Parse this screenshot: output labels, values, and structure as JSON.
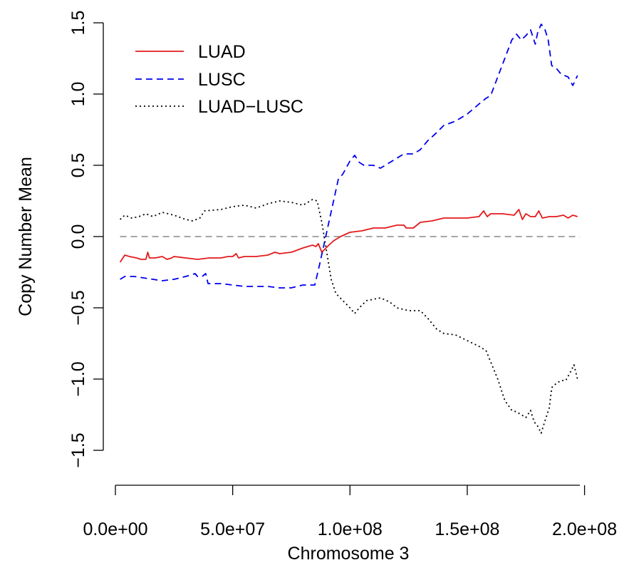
{
  "chart_data": {
    "type": "line",
    "title": "",
    "xlabel": "Chromosome 3",
    "ylabel": "Copy Number Mean",
    "xlim": [
      0,
      198000000
    ],
    "ylim": [
      -1.5,
      1.5
    ],
    "x_ticks": [
      0,
      50000000,
      100000000,
      150000000,
      200000000
    ],
    "x_tick_labels": [
      "0.0e+00",
      "5.0e+07",
      "1.0e+08",
      "1.5e+08",
      "2.0e+08"
    ],
    "y_ticks": [
      -1.5,
      -1.0,
      -0.5,
      0.0,
      0.5,
      1.0,
      1.5
    ],
    "y_tick_labels": [
      "−1.5",
      "−1.0",
      "−0.5",
      "0.0",
      "0.5",
      "1.0",
      "1.5"
    ],
    "reference_line": {
      "y": 0,
      "color": "#888888",
      "style": "dashed"
    },
    "legend_position": "top-left",
    "grid": false,
    "series": [
      {
        "name": "LUAD",
        "color": "#e41a1c",
        "style": "solid",
        "points": [
          [
            2000000,
            -0.18
          ],
          [
            4000000,
            -0.13
          ],
          [
            6000000,
            -0.14
          ],
          [
            9000000,
            -0.15
          ],
          [
            11000000,
            -0.16
          ],
          [
            13000000,
            -0.16
          ],
          [
            13800000,
            -0.11
          ],
          [
            14500000,
            -0.15
          ],
          [
            17000000,
            -0.15
          ],
          [
            20000000,
            -0.14
          ],
          [
            22000000,
            -0.16
          ],
          [
            24000000,
            -0.15
          ],
          [
            25000000,
            -0.14
          ],
          [
            30000000,
            -0.15
          ],
          [
            35000000,
            -0.16
          ],
          [
            40000000,
            -0.15
          ],
          [
            45000000,
            -0.15
          ],
          [
            48000000,
            -0.14
          ],
          [
            50000000,
            -0.14
          ],
          [
            51500000,
            -0.12
          ],
          [
            52500000,
            -0.15
          ],
          [
            55000000,
            -0.14
          ],
          [
            60000000,
            -0.14
          ],
          [
            65000000,
            -0.13
          ],
          [
            68000000,
            -0.11
          ],
          [
            70000000,
            -0.12
          ],
          [
            75000000,
            -0.11
          ],
          [
            80000000,
            -0.08
          ],
          [
            84000000,
            -0.06
          ],
          [
            85500000,
            -0.07
          ],
          [
            86500000,
            -0.05
          ],
          [
            88000000,
            -0.11
          ],
          [
            91000000,
            -0.06
          ],
          [
            93000000,
            -0.03
          ],
          [
            96000000,
            0.0
          ],
          [
            100000000,
            0.03
          ],
          [
            105000000,
            0.04
          ],
          [
            110000000,
            0.06
          ],
          [
            115000000,
            0.06
          ],
          [
            120000000,
            0.08
          ],
          [
            123000000,
            0.08
          ],
          [
            124000000,
            0.06
          ],
          [
            127000000,
            0.06
          ],
          [
            130000000,
            0.1
          ],
          [
            135000000,
            0.11
          ],
          [
            140000000,
            0.13
          ],
          [
            145000000,
            0.13
          ],
          [
            150000000,
            0.13
          ],
          [
            155000000,
            0.14
          ],
          [
            157000000,
            0.18
          ],
          [
            158500000,
            0.14
          ],
          [
            160000000,
            0.16
          ],
          [
            165000000,
            0.16
          ],
          [
            170000000,
            0.15
          ],
          [
            172000000,
            0.19
          ],
          [
            173500000,
            0.12
          ],
          [
            175000000,
            0.16
          ],
          [
            177000000,
            0.14
          ],
          [
            179000000,
            0.14
          ],
          [
            180500000,
            0.18
          ],
          [
            182000000,
            0.13
          ],
          [
            185000000,
            0.14
          ],
          [
            188000000,
            0.14
          ],
          [
            191000000,
            0.15
          ],
          [
            193000000,
            0.13
          ],
          [
            195000000,
            0.15
          ],
          [
            197000000,
            0.14
          ]
        ]
      },
      {
        "name": "LUSC",
        "color": "#0000ee",
        "style": "dashed",
        "points": [
          [
            2000000,
            -0.3
          ],
          [
            4000000,
            -0.28
          ],
          [
            8000000,
            -0.28
          ],
          [
            12000000,
            -0.29
          ],
          [
            16000000,
            -0.3
          ],
          [
            20000000,
            -0.31
          ],
          [
            25000000,
            -0.3
          ],
          [
            30000000,
            -0.28
          ],
          [
            34000000,
            -0.26
          ],
          [
            35000000,
            -0.28
          ],
          [
            37000000,
            -0.28
          ],
          [
            38500000,
            -0.26
          ],
          [
            39500000,
            -0.33
          ],
          [
            45000000,
            -0.33
          ],
          [
            50000000,
            -0.34
          ],
          [
            55000000,
            -0.35
          ],
          [
            60000000,
            -0.35
          ],
          [
            65000000,
            -0.35
          ],
          [
            70000000,
            -0.36
          ],
          [
            75000000,
            -0.36
          ],
          [
            80000000,
            -0.34
          ],
          [
            85000000,
            -0.34
          ],
          [
            87000000,
            -0.2
          ],
          [
            89000000,
            -0.05
          ],
          [
            91000000,
            0.1
          ],
          [
            93000000,
            0.25
          ],
          [
            95000000,
            0.4
          ],
          [
            97000000,
            0.44
          ],
          [
            100000000,
            0.53
          ],
          [
            102000000,
            0.57
          ],
          [
            104000000,
            0.52
          ],
          [
            106000000,
            0.5
          ],
          [
            110000000,
            0.5
          ],
          [
            113000000,
            0.48
          ],
          [
            117000000,
            0.52
          ],
          [
            120000000,
            0.55
          ],
          [
            123000000,
            0.58
          ],
          [
            127000000,
            0.58
          ],
          [
            130000000,
            0.61
          ],
          [
            133000000,
            0.67
          ],
          [
            137000000,
            0.73
          ],
          [
            140000000,
            0.78
          ],
          [
            145000000,
            0.81
          ],
          [
            150000000,
            0.86
          ],
          [
            155000000,
            0.93
          ],
          [
            158000000,
            0.97
          ],
          [
            160000000,
            0.99
          ],
          [
            163000000,
            1.12
          ],
          [
            166000000,
            1.25
          ],
          [
            169000000,
            1.38
          ],
          [
            171000000,
            1.42
          ],
          [
            173000000,
            1.38
          ],
          [
            175000000,
            1.41
          ],
          [
            177000000,
            1.45
          ],
          [
            178000000,
            1.4
          ],
          [
            179000000,
            1.35
          ],
          [
            180000000,
            1.43
          ],
          [
            181500000,
            1.49
          ],
          [
            183000000,
            1.46
          ],
          [
            184500000,
            1.38
          ],
          [
            186000000,
            1.2
          ],
          [
            188000000,
            1.18
          ],
          [
            190000000,
            1.14
          ],
          [
            193000000,
            1.12
          ],
          [
            195000000,
            1.06
          ],
          [
            197000000,
            1.13
          ]
        ]
      },
      {
        "name": "LUAD−LUSC",
        "color": "#000000",
        "style": "dotted",
        "points": [
          [
            2000000,
            0.12
          ],
          [
            4000000,
            0.15
          ],
          [
            7000000,
            0.13
          ],
          [
            10000000,
            0.14
          ],
          [
            13000000,
            0.16
          ],
          [
            16000000,
            0.14
          ],
          [
            20000000,
            0.17
          ],
          [
            25000000,
            0.15
          ],
          [
            30000000,
            0.12
          ],
          [
            33000000,
            0.11
          ],
          [
            36000000,
            0.13
          ],
          [
            38000000,
            0.18
          ],
          [
            45000000,
            0.19
          ],
          [
            50000000,
            0.21
          ],
          [
            55000000,
            0.22
          ],
          [
            60000000,
            0.2
          ],
          [
            65000000,
            0.23
          ],
          [
            70000000,
            0.25
          ],
          [
            75000000,
            0.24
          ],
          [
            80000000,
            0.22
          ],
          [
            84000000,
            0.26
          ],
          [
            86000000,
            0.25
          ],
          [
            88000000,
            0.1
          ],
          [
            90000000,
            -0.1
          ],
          [
            92000000,
            -0.3
          ],
          [
            94000000,
            -0.4
          ],
          [
            97000000,
            -0.45
          ],
          [
            100000000,
            -0.5
          ],
          [
            102000000,
            -0.54
          ],
          [
            104000000,
            -0.5
          ],
          [
            107000000,
            -0.45
          ],
          [
            110000000,
            -0.44
          ],
          [
            113000000,
            -0.43
          ],
          [
            117000000,
            -0.46
          ],
          [
            120000000,
            -0.5
          ],
          [
            125000000,
            -0.52
          ],
          [
            130000000,
            -0.52
          ],
          [
            133000000,
            -0.57
          ],
          [
            137000000,
            -0.65
          ],
          [
            140000000,
            -0.68
          ],
          [
            145000000,
            -0.69
          ],
          [
            150000000,
            -0.73
          ],
          [
            155000000,
            -0.77
          ],
          [
            158000000,
            -0.8
          ],
          [
            160000000,
            -0.88
          ],
          [
            163000000,
            -1.0
          ],
          [
            166000000,
            -1.15
          ],
          [
            169000000,
            -1.22
          ],
          [
            171000000,
            -1.23
          ],
          [
            173000000,
            -1.25
          ],
          [
            175000000,
            -1.27
          ],
          [
            177000000,
            -1.22
          ],
          [
            178500000,
            -1.3
          ],
          [
            180000000,
            -1.33
          ],
          [
            181500000,
            -1.38
          ],
          [
            183000000,
            -1.3
          ],
          [
            185000000,
            -1.2
          ],
          [
            186000000,
            -1.06
          ],
          [
            188000000,
            -1.03
          ],
          [
            190000000,
            -1.01
          ],
          [
            192000000,
            -1.01
          ],
          [
            194000000,
            -0.95
          ],
          [
            195500000,
            -0.9
          ],
          [
            197000000,
            -1.0
          ]
        ]
      }
    ]
  }
}
